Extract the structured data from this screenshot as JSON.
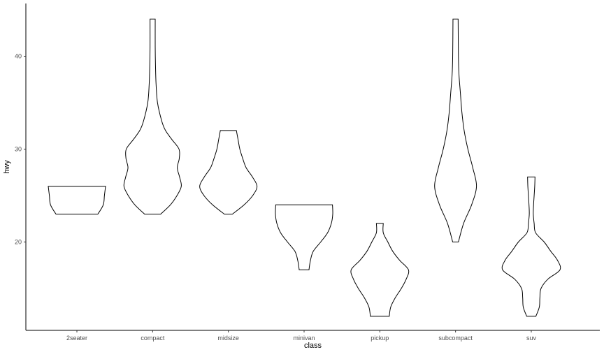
{
  "chart_data": {
    "type": "violin",
    "title": "",
    "xlabel": "class",
    "ylabel": "hwy",
    "ylim": [
      11,
      45
    ],
    "grid": false,
    "yticks": [
      20,
      30,
      40
    ],
    "categories": [
      "2seater",
      "compact",
      "midsize",
      "minivan",
      "pickup",
      "subcompact",
      "suv"
    ],
    "violins": [
      {
        "category": "2seater",
        "min": 23,
        "max": 26,
        "profile": [
          [
            23,
            0.73
          ],
          [
            24,
            0.92
          ],
          [
            25,
            0.96
          ],
          [
            26,
            1.0
          ]
        ]
      },
      {
        "category": "compact",
        "min": 23,
        "max": 44,
        "profile": [
          [
            23,
            0.28
          ],
          [
            24,
            0.62
          ],
          [
            25,
            0.85
          ],
          [
            26,
            1.0
          ],
          [
            27,
            0.94
          ],
          [
            28,
            0.86
          ],
          [
            29,
            0.93
          ],
          [
            30,
            0.92
          ],
          [
            31,
            0.68
          ],
          [
            32,
            0.45
          ],
          [
            33,
            0.32
          ],
          [
            35,
            0.17
          ],
          [
            37,
            0.12
          ],
          [
            39,
            0.1
          ],
          [
            41,
            0.09
          ],
          [
            44,
            0.09
          ]
        ]
      },
      {
        "category": "midsize",
        "min": 23,
        "max": 32,
        "profile": [
          [
            23,
            0.14
          ],
          [
            24,
            0.55
          ],
          [
            25,
            0.85
          ],
          [
            26,
            1.0
          ],
          [
            27,
            0.84
          ],
          [
            28,
            0.62
          ],
          [
            29,
            0.5
          ],
          [
            30,
            0.4
          ],
          [
            31,
            0.34
          ],
          [
            32,
            0.28
          ]
        ]
      },
      {
        "category": "minivan",
        "min": 17,
        "max": 24,
        "profile": [
          [
            17,
            0.17
          ],
          [
            18,
            0.22
          ],
          [
            19,
            0.32
          ],
          [
            20,
            0.58
          ],
          [
            21,
            0.82
          ],
          [
            22,
            0.95
          ],
          [
            23,
            1.0
          ],
          [
            24,
            0.99
          ]
        ]
      },
      {
        "category": "pickup",
        "min": 12,
        "max": 22,
        "profile": [
          [
            12,
            0.33
          ],
          [
            13,
            0.38
          ],
          [
            14,
            0.54
          ],
          [
            15,
            0.75
          ],
          [
            16,
            0.92
          ],
          [
            17,
            1.0
          ],
          [
            18,
            0.7
          ],
          [
            19,
            0.45
          ],
          [
            20,
            0.28
          ],
          [
            21,
            0.12
          ],
          [
            22,
            0.12
          ]
        ]
      },
      {
        "category": "subcompact",
        "min": 20,
        "max": 44,
        "profile": [
          [
            20,
            0.1
          ],
          [
            22,
            0.28
          ],
          [
            24,
            0.56
          ],
          [
            26,
            0.73
          ],
          [
            28,
            0.6
          ],
          [
            30,
            0.43
          ],
          [
            32,
            0.3
          ],
          [
            34,
            0.22
          ],
          [
            36,
            0.17
          ],
          [
            38,
            0.12
          ],
          [
            40,
            0.1
          ],
          [
            44,
            0.09
          ]
        ]
      },
      {
        "category": "suv",
        "min": 12,
        "max": 27,
        "profile": [
          [
            12,
            0.16
          ],
          [
            13,
            0.28
          ],
          [
            14,
            0.3
          ],
          [
            15,
            0.34
          ],
          [
            16,
            0.58
          ],
          [
            17,
            1.0
          ],
          [
            18,
            0.92
          ],
          [
            19,
            0.68
          ],
          [
            20,
            0.45
          ],
          [
            21,
            0.15
          ],
          [
            22,
            0.1
          ],
          [
            23,
            0.07
          ],
          [
            24,
            0.08
          ],
          [
            25,
            0.1
          ],
          [
            26,
            0.12
          ],
          [
            27,
            0.13
          ]
        ]
      }
    ]
  }
}
